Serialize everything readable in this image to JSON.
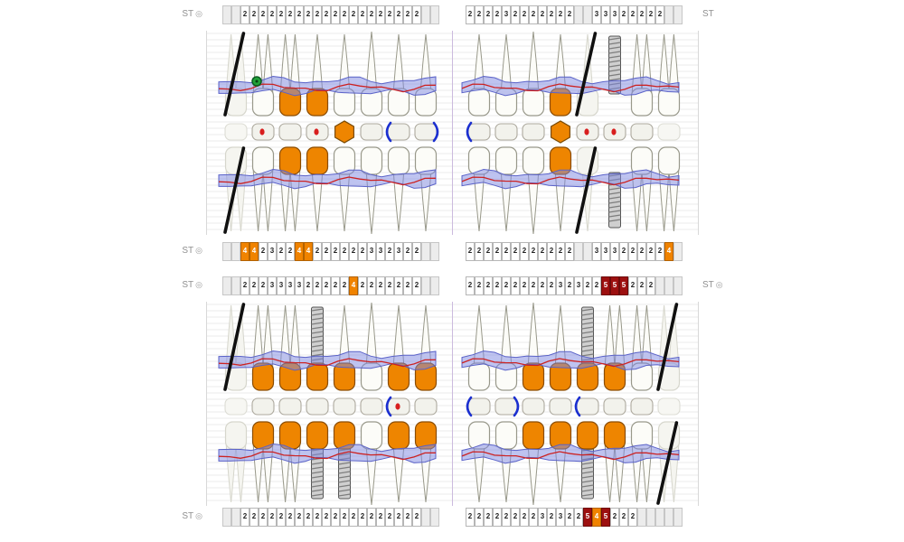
{
  "labels": {
    "st": "ST"
  },
  "colors": {
    "restoration_orange": "#ee8500",
    "cell_highlight_orange": "#f08300",
    "cell_warning_red": "#9d1010",
    "gingiva_blue": "#7d87e1",
    "gingival_margin_red": "#cc2222",
    "bracket_blue": "#1b2fd0",
    "implant_gray": "#cfcfcf",
    "marker_green": "#21a038"
  },
  "strips": {
    "top": {
      "left_label": "ST",
      "right_label": "ST",
      "left": [
        "",
        "",
        "2",
        "2",
        "2",
        "2",
        "2",
        "2",
        "2",
        "2",
        "2",
        "2",
        "2",
        "2",
        "2",
        "2",
        "2",
        "2",
        "2",
        "2",
        "2",
        "2",
        "",
        ""
      ],
      "right": [
        "2",
        "2",
        "2",
        "2",
        "3",
        "2",
        "2",
        "2",
        "2",
        "2",
        "2",
        "2",
        "",
        "",
        "3",
        "3",
        "3",
        "2",
        "2",
        "2",
        "2",
        "2",
        "",
        ""
      ]
    },
    "upper_bottom": {
      "left_label": "ST",
      "left": [
        "",
        "",
        {
          "v": "4",
          "c": "orange"
        },
        {
          "v": "4",
          "c": "orange"
        },
        "2",
        "3",
        "2",
        "2",
        {
          "v": "4",
          "c": "orange"
        },
        {
          "v": "4",
          "c": "orange"
        },
        "2",
        "2",
        "2",
        "2",
        "2",
        "2",
        "3",
        "3",
        "2",
        "3",
        "2",
        "2",
        "",
        ""
      ],
      "right": [
        "2",
        "2",
        "2",
        "2",
        "2",
        "2",
        "2",
        "2",
        "2",
        "2",
        "2",
        "2",
        "",
        "",
        "3",
        "3",
        "3",
        "2",
        "2",
        "2",
        "2",
        "2",
        {
          "v": "4",
          "c": "orange"
        },
        ""
      ]
    },
    "lower_top": {
      "left_label": "ST",
      "right_label": "ST",
      "left": [
        "",
        "",
        "2",
        "2",
        "2",
        "3",
        "3",
        "3",
        "3",
        "2",
        "2",
        "2",
        "2",
        "2",
        {
          "v": "4",
          "c": "orange"
        },
        "2",
        "2",
        "2",
        "2",
        "2",
        "2",
        "2",
        "",
        ""
      ],
      "right": [
        "2",
        "2",
        "2",
        "2",
        "2",
        "2",
        "2",
        "2",
        "2",
        "2",
        "3",
        "2",
        "3",
        "2",
        "2",
        {
          "v": "5",
          "c": "red"
        },
        {
          "v": "5",
          "c": "red"
        },
        {
          "v": "5",
          "c": "red"
        },
        "2",
        "2",
        "2",
        "",
        "",
        ""
      ]
    },
    "bottom": {
      "left_label": "ST",
      "left": [
        "",
        "",
        "2",
        "2",
        "2",
        "2",
        "2",
        "2",
        "2",
        "2",
        "2",
        "2",
        "2",
        "2",
        "2",
        "2",
        "2",
        "2",
        "2",
        "2",
        "2",
        "2",
        "",
        ""
      ],
      "right": [
        "2",
        "2",
        "2",
        "2",
        "2",
        "2",
        "2",
        "2",
        "3",
        "2",
        "3",
        "2",
        "2",
        {
          "v": "5",
          "c": "red"
        },
        {
          "v": "4",
          "c": "orange"
        },
        {
          "v": "5",
          "c": "red"
        },
        "2",
        "2",
        "2",
        "",
        "",
        "",
        "",
        ""
      ]
    }
  },
  "teeth": {
    "upper_buccal": {
      "orient": "up",
      "teeth": [
        {
          "t": "m",
          "s": "x"
        },
        {
          "t": "m",
          "s": "n",
          "mk": "green"
        },
        {
          "t": "m",
          "s": "c"
        },
        {
          "t": "p",
          "s": "c"
        },
        {
          "t": "p",
          "s": "n"
        },
        {
          "t": "c",
          "s": "n"
        },
        {
          "t": "i",
          "s": "n"
        },
        {
          "t": "i",
          "s": "n"
        },
        {
          "t": "i",
          "s": "n"
        },
        {
          "t": "i",
          "s": "n"
        },
        {
          "t": "c",
          "s": "n"
        },
        {
          "t": "p",
          "s": "c"
        },
        {
          "t": "p",
          "s": "x"
        },
        {
          "t": "m",
          "s": "imp"
        },
        {
          "t": "m",
          "s": "n"
        },
        {
          "t": "m",
          "s": "n"
        }
      ]
    },
    "upper_lingual": {
      "orient": "down",
      "teeth": [
        {
          "t": "m",
          "s": "x"
        },
        {
          "t": "m",
          "s": "n"
        },
        {
          "t": "m",
          "s": "c"
        },
        {
          "t": "p",
          "s": "c"
        },
        {
          "t": "p",
          "s": "n"
        },
        {
          "t": "c",
          "s": "n"
        },
        {
          "t": "i",
          "s": "n"
        },
        {
          "t": "i",
          "s": "n"
        },
        {
          "t": "i",
          "s": "n"
        },
        {
          "t": "i",
          "s": "n"
        },
        {
          "t": "c",
          "s": "n"
        },
        {
          "t": "p",
          "s": "c"
        },
        {
          "t": "p",
          "s": "x"
        },
        {
          "t": "m",
          "s": "imp"
        },
        {
          "t": "m",
          "s": "n"
        },
        {
          "t": "m",
          "s": "n"
        }
      ]
    },
    "lower_buccal": {
      "orient": "up",
      "teeth": [
        {
          "t": "m",
          "s": "x"
        },
        {
          "t": "m",
          "s": "c"
        },
        {
          "t": "m",
          "s": "c"
        },
        {
          "t": "p",
          "s": "impc"
        },
        {
          "t": "p",
          "s": "c"
        },
        {
          "t": "c",
          "s": "n"
        },
        {
          "t": "i",
          "s": "c"
        },
        {
          "t": "i",
          "s": "c"
        },
        {
          "t": "i",
          "s": "n"
        },
        {
          "t": "i",
          "s": "n"
        },
        {
          "t": "c",
          "s": "c"
        },
        {
          "t": "p",
          "s": "c"
        },
        {
          "t": "p",
          "s": "impc"
        },
        {
          "t": "m",
          "s": "c"
        },
        {
          "t": "m",
          "s": "n"
        },
        {
          "t": "m",
          "s": "x"
        }
      ]
    },
    "lower_lingual": {
      "orient": "down",
      "teeth": [
        {
          "t": "m",
          "s": "g"
        },
        {
          "t": "m",
          "s": "c"
        },
        {
          "t": "m",
          "s": "c"
        },
        {
          "t": "p",
          "s": "impc"
        },
        {
          "t": "p",
          "s": "impc"
        },
        {
          "t": "c",
          "s": "n"
        },
        {
          "t": "i",
          "s": "c"
        },
        {
          "t": "i",
          "s": "c"
        },
        {
          "t": "i",
          "s": "n"
        },
        {
          "t": "i",
          "s": "n"
        },
        {
          "t": "c",
          "s": "c"
        },
        {
          "t": "p",
          "s": "c"
        },
        {
          "t": "p",
          "s": "impc"
        },
        {
          "t": "m",
          "s": "c"
        },
        {
          "t": "m",
          "s": "n"
        },
        {
          "t": "m",
          "s": "x"
        }
      ]
    }
  },
  "occlusal": {
    "upper": [
      {
        "sh": "sq",
        "ghost": true
      },
      {
        "sh": "sq",
        "dot": true
      },
      {
        "sh": "sq"
      },
      {
        "sh": "sq",
        "dot": true
      },
      {
        "sh": "hex"
      },
      {
        "sh": "sq"
      },
      {
        "sh": "sq",
        "br": "open"
      },
      {
        "sh": "sq",
        "br": "close"
      },
      {
        "sh": "sq",
        "br": "open"
      },
      {
        "sh": "sq"
      },
      {
        "sh": "sq"
      },
      {
        "sh": "hex"
      },
      {
        "sh": "sq",
        "dot": true
      },
      {
        "sh": "sq",
        "dot": true
      },
      {
        "sh": "sq"
      },
      {
        "sh": "sq",
        "ghost": true
      }
    ],
    "lower": [
      {
        "sh": "sq",
        "ghost": true
      },
      {
        "sh": "sq"
      },
      {
        "sh": "sq"
      },
      {
        "sh": "sq"
      },
      {
        "sh": "sq"
      },
      {
        "sh": "sq"
      },
      {
        "sh": "sq",
        "br": "open",
        "dot": true
      },
      {
        "sh": "sq"
      },
      {
        "sh": "sq",
        "br": "open"
      },
      {
        "sh": "sq",
        "br": "close"
      },
      {
        "sh": "sq"
      },
      {
        "sh": "sq"
      },
      {
        "sh": "sq",
        "br": "open"
      },
      {
        "sh": "sq"
      },
      {
        "sh": "sq"
      },
      {
        "sh": "sq",
        "ghost": true
      }
    ]
  }
}
